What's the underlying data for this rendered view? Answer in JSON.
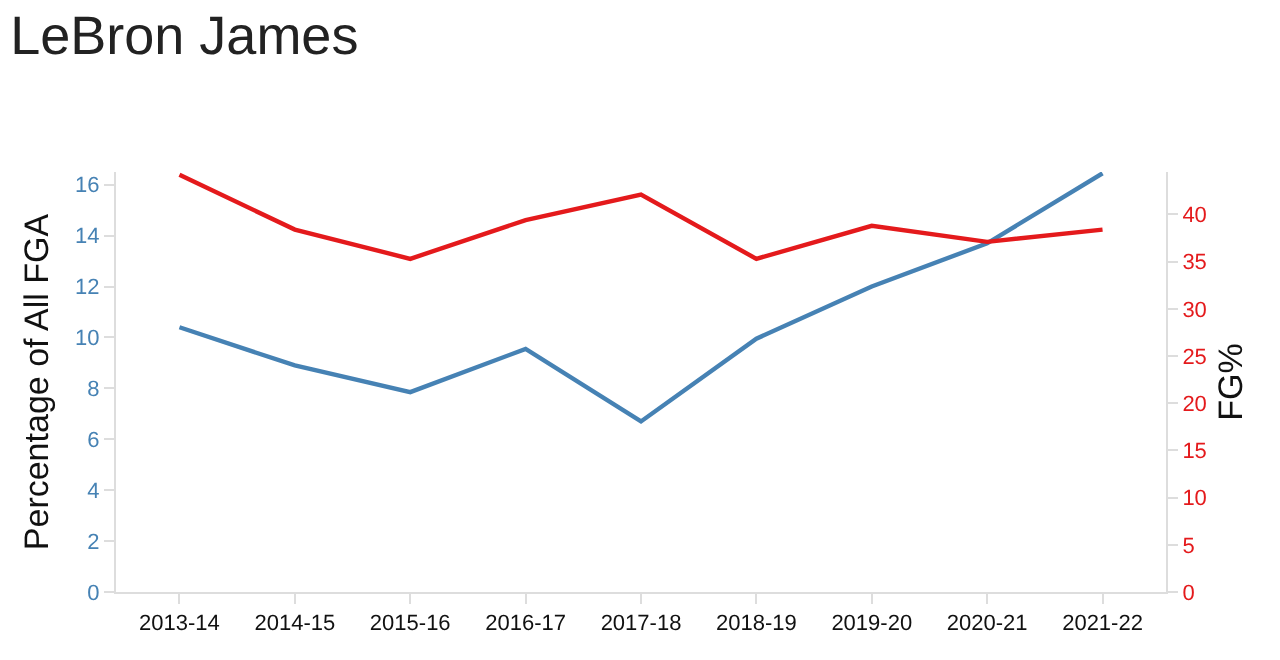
{
  "chart_data": {
    "type": "line",
    "title": "LeBron James",
    "ylabel": "Percentage of All FGA",
    "y2label": "FG%",
    "categories": [
      "2013-14",
      "2014-15",
      "2015-16",
      "2016-17",
      "2017-18",
      "2018-19",
      "2019-20",
      "2020-21",
      "2021-22"
    ],
    "series": [
      {
        "color": "#4682b4",
        "values": [
          10.4,
          8.9,
          7.85,
          9.55,
          6.7,
          9.95,
          12.0,
          13.7,
          16.45
        ]
      },
      {
        "color": "#e41a1c",
        "axis": "y2",
        "values": [
          44.2,
          38.4,
          35.3,
          39.4,
          42.1,
          35.3,
          38.8,
          37.1,
          38.4
        ]
      }
    ],
    "ylim": [
      0,
      16.5
    ],
    "yticks": [
      0,
      2,
      4,
      6,
      8,
      10,
      12,
      14,
      16
    ],
    "y2lim": [
      0,
      44.5
    ],
    "y2ticks": [
      0,
      5,
      10,
      15,
      20,
      25,
      30,
      35,
      40
    ],
    "marker": "none",
    "line_style": "solid"
  }
}
